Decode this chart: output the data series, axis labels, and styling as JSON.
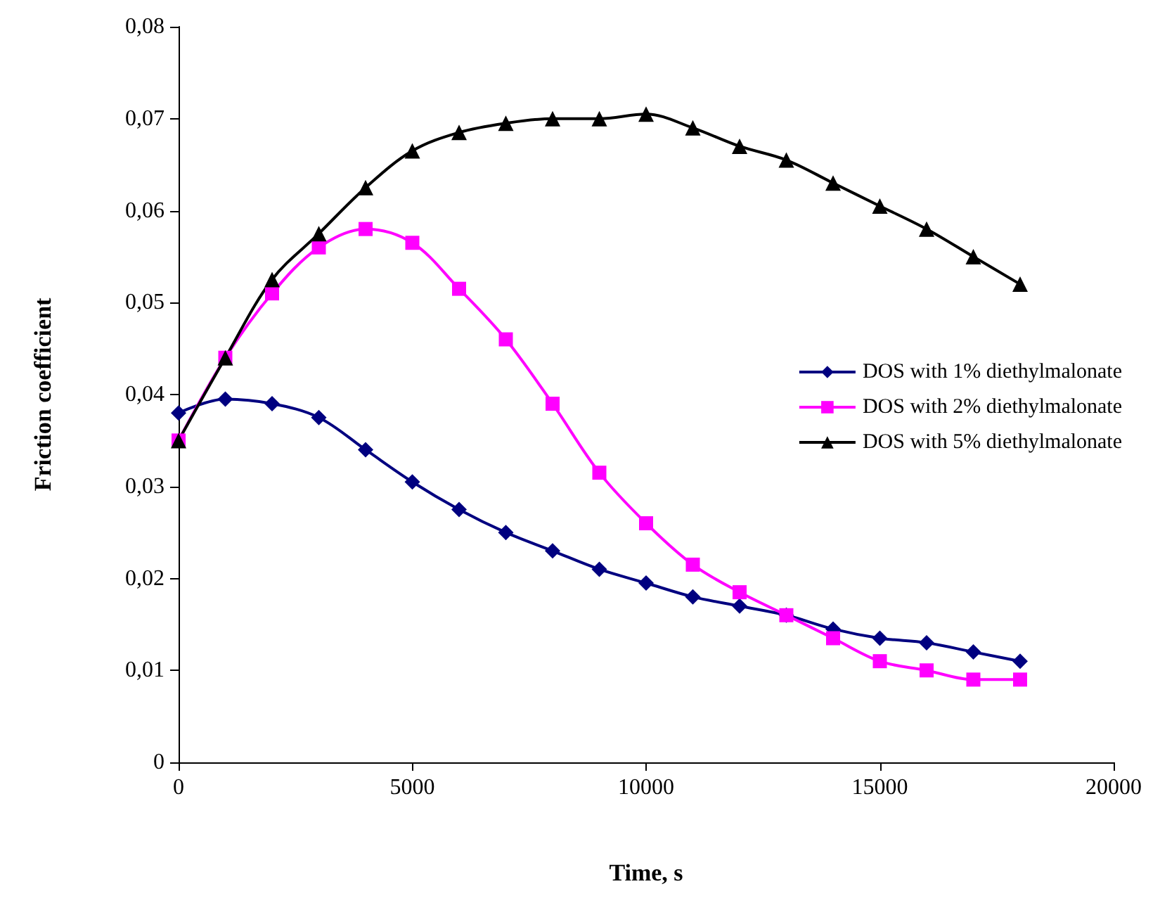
{
  "chart_data": {
    "type": "line",
    "xlabel": "Time, s",
    "ylabel": "Friction coefficient",
    "x": [
      0,
      1000,
      2000,
      3000,
      4000,
      5000,
      6000,
      7000,
      8000,
      9000,
      10000,
      11000,
      12000,
      13000,
      14000,
      15000,
      16000,
      17000,
      18000
    ],
    "series": [
      {
        "name": "DOS with 1% diethylmalonate",
        "color": "#000080",
        "marker": "diamond",
        "values": [
          0.038,
          0.0395,
          0.039,
          0.0375,
          0.034,
          0.0305,
          0.0275,
          0.025,
          0.023,
          0.021,
          0.0195,
          0.018,
          0.017,
          0.016,
          0.0145,
          0.0135,
          0.013,
          0.012,
          0.011
        ]
      },
      {
        "name": "DOS with 2% diethylmalonate",
        "color": "#ff00ff",
        "marker": "square",
        "values": [
          0.035,
          0.044,
          0.051,
          0.056,
          0.058,
          0.0565,
          0.0515,
          0.046,
          0.039,
          0.0315,
          0.026,
          0.0215,
          0.0185,
          0.016,
          0.0135,
          0.011,
          0.01,
          0.009,
          0.009
        ]
      },
      {
        "name": "DOS with 5% diethylmalonate",
        "color": "#000000",
        "marker": "triangle",
        "values": [
          0.035,
          0.044,
          0.0525,
          0.0575,
          0.0625,
          0.0665,
          0.0685,
          0.0695,
          0.07,
          0.07,
          0.0705,
          0.069,
          0.067,
          0.0655,
          0.063,
          0.0605,
          0.058,
          0.055,
          0.052
        ]
      }
    ],
    "xlim": [
      0,
      20000
    ],
    "xticks": [
      0,
      5000,
      10000,
      15000,
      20000
    ],
    "ylim": [
      0,
      0.08
    ],
    "yticks": [
      0,
      {
        "value": 0.01,
        "label": "0,01"
      },
      {
        "value": 0.02,
        "label": "0,02"
      },
      {
        "value": 0.03,
        "label": "0,03"
      },
      {
        "value": 0.04,
        "label": "0,04"
      },
      {
        "value": 0.05,
        "label": "0,05"
      },
      {
        "value": 0.06,
        "label": "0,06"
      },
      {
        "value": 0.07,
        "label": "0,07"
      },
      {
        "value": 0.08,
        "label": "0,08"
      }
    ],
    "grid": false,
    "legend": "right",
    "line_style": "solid"
  }
}
